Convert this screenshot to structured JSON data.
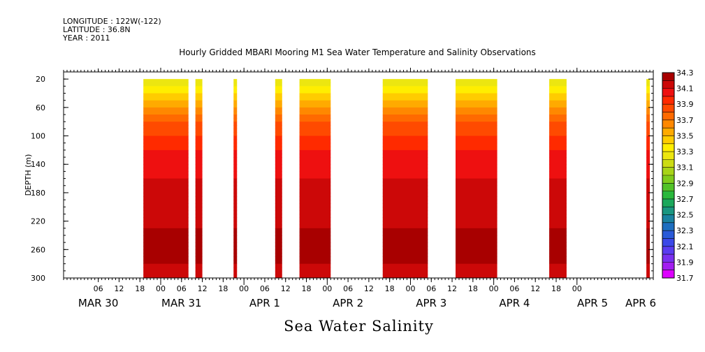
{
  "header": {
    "longitude": "LONGITUDE : 122W(-122)",
    "latitude": "LATITUDE : 36.8N",
    "year": "YEAR : 2011"
  },
  "chart_data": {
    "type": "heatmap",
    "title": "Hourly Gridded MBARI Mooring M1 Sea Water Temperature and Salinity Observations",
    "xlabel": "Sea Water Salinity",
    "ylabel": "DEPTH (m)",
    "y_range": [
      300,
      10
    ],
    "y_ticks": [
      20,
      60,
      100,
      140,
      180,
      220,
      260,
      300
    ],
    "x_range_hours_from_mar30_00": [
      -4,
      142
    ],
    "x_hour_ticks": [
      {
        "t": 6,
        "label": "06"
      },
      {
        "t": 12,
        "label": "12"
      },
      {
        "t": 18,
        "label": "18"
      },
      {
        "t": 24,
        "label": "00"
      },
      {
        "t": 30,
        "label": "06"
      },
      {
        "t": 36,
        "label": "12"
      },
      {
        "t": 42,
        "label": "18"
      },
      {
        "t": 48,
        "label": "00"
      },
      {
        "t": 54,
        "label": "06"
      },
      {
        "t": 60,
        "label": "12"
      },
      {
        "t": 66,
        "label": "18"
      },
      {
        "t": 72,
        "label": "00"
      },
      {
        "t": 78,
        "label": "06"
      },
      {
        "t": 84,
        "label": "12"
      },
      {
        "t": 90,
        "label": "18"
      },
      {
        "t": 96,
        "label": "00"
      },
      {
        "t": 102,
        "label": "06"
      },
      {
        "t": 108,
        "label": "12"
      },
      {
        "t": 114,
        "label": "18"
      },
      {
        "t": 120,
        "label": "00"
      },
      {
        "t": 126,
        "label": "06"
      },
      {
        "t": 132,
        "label": "12"
      },
      {
        "t": 138,
        "label": "18"
      },
      {
        "t": 144,
        "label": "00"
      }
    ],
    "x_day_labels": [
      {
        "t": 6,
        "label": "MAR 30"
      },
      {
        "t": 30,
        "label": "MAR 31"
      },
      {
        "t": 54,
        "label": "APR  1"
      },
      {
        "t": 78,
        "label": "APR  2"
      },
      {
        "t": 102,
        "label": "APR  3"
      },
      {
        "t": 126,
        "label": "APR  4"
      },
      {
        "t": 150,
        "label": "APR  5"
      },
      {
        "t": 166,
        "label": "APR  6"
      }
    ],
    "data_segments_hours": [
      [
        19,
        32
      ],
      [
        34,
        36
      ],
      [
        45,
        46
      ],
      [
        57,
        59
      ],
      [
        64,
        73
      ],
      [
        88,
        101
      ],
      [
        109,
        121
      ],
      [
        136,
        141
      ],
      [
        164,
        165
      ]
    ],
    "profile_depth_m": [
      20,
      40,
      60,
      80,
      100,
      120,
      140,
      160,
      180,
      200,
      220,
      240,
      260,
      280,
      300
    ],
    "profile_salinity": [
      33.2,
      33.4,
      33.6,
      33.8,
      33.9,
      34.0,
      34.05,
      34.1,
      34.1,
      34.1,
      34.15,
      34.25,
      34.25,
      34.2,
      34.1
    ],
    "colorbar": {
      "levels": [
        31.7,
        31.8,
        31.9,
        32.0,
        32.1,
        32.2,
        32.3,
        32.4,
        32.5,
        32.6,
        32.7,
        32.8,
        32.9,
        33.0,
        33.1,
        33.2,
        33.3,
        33.4,
        33.5,
        33.6,
        33.7,
        33.8,
        33.9,
        34.0,
        34.1,
        34.2,
        34.3
      ],
      "labels": [
        "31.7",
        "31.9",
        "32.1",
        "32.3",
        "32.5",
        "32.7",
        "32.9",
        "33.1",
        "33.3",
        "33.5",
        "33.7",
        "33.9",
        "34.1",
        "34.3"
      ],
      "colors": [
        "#dd00ff",
        "#a21ef0",
        "#7a30f0",
        "#5a3cf0",
        "#3b48e8",
        "#2a5ad8",
        "#1e6ec0",
        "#1a82a0",
        "#1a9680",
        "#1ca85c",
        "#2ab83c",
        "#52c228",
        "#80cc1c",
        "#a8d418",
        "#ccdc14",
        "#ece610",
        "#ffee00",
        "#ffcc00",
        "#ffaa00",
        "#ff8800",
        "#ff6a00",
        "#ff4a00",
        "#ff2a00",
        "#ee1010",
        "#cc0808",
        "#a80000"
      ]
    }
  }
}
